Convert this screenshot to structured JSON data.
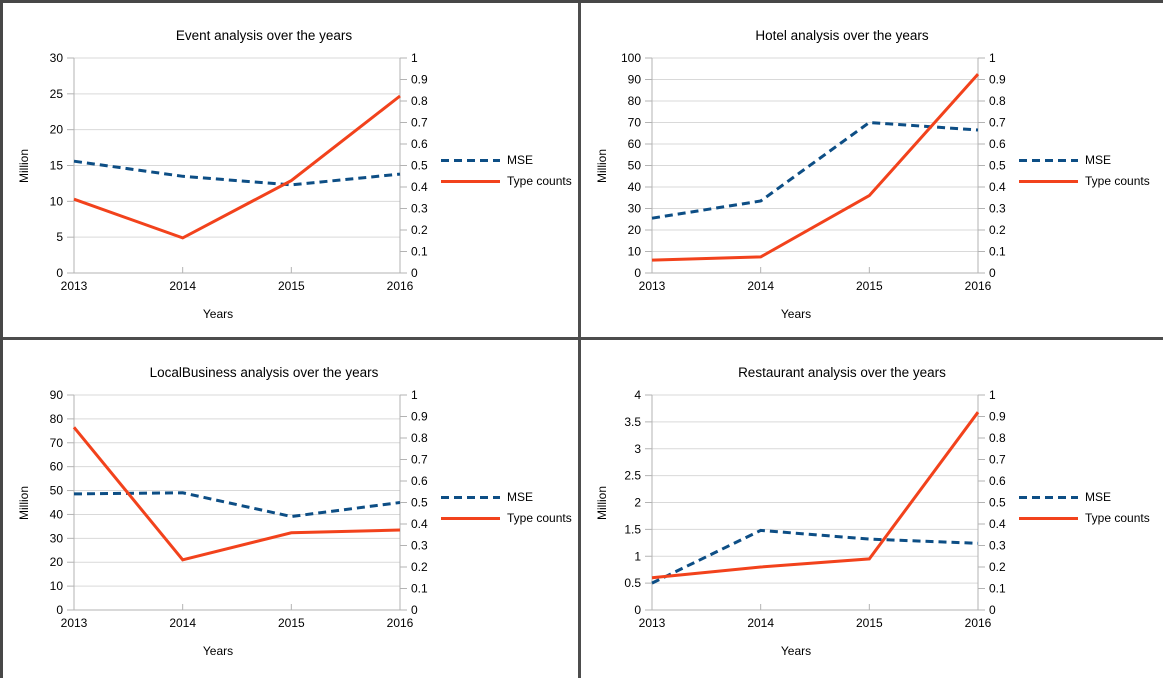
{
  "palette": {
    "mse_color": "#0d4e85",
    "type_counts_color": "#f2421c",
    "grid_color": "#d9d9d9",
    "axis_color": "#b3b3b3",
    "text_color": "#000000",
    "separator_color": "#4d4d4d",
    "background": "#ffffff"
  },
  "chart_data": [
    {
      "type": "line",
      "title": "Event analysis over the years",
      "xlabel": "Years",
      "ylabel": "Million",
      "categories": [
        "2013",
        "2014",
        "2015",
        "2016"
      ],
      "left_axis": {
        "min": 0,
        "max": 30,
        "step": 5,
        "unit": "Million",
        "ticks": [
          "30",
          "25",
          "20",
          "15",
          "10",
          "5",
          "0"
        ]
      },
      "right_axis": {
        "min": 0,
        "max": 1,
        "step": 0.1,
        "ticks": [
          "1",
          "0.9",
          "0.8",
          "0.7",
          "0.6",
          "0.5",
          "0.4",
          "0.3",
          "0.2",
          "0.1",
          "0"
        ]
      },
      "legend_position": "right",
      "grid": true,
      "series": [
        {
          "name": "MSE",
          "axis": "right",
          "style": "dashed",
          "color": "#0d4e85",
          "values": [
            0.52,
            0.45,
            0.41,
            0.46
          ]
        },
        {
          "name": "Type counts",
          "axis": "left",
          "style": "solid",
          "color": "#f2421c",
          "values": [
            10.3,
            4.9,
            12.9,
            24.7
          ]
        }
      ]
    },
    {
      "type": "line",
      "title": "Hotel analysis over the years",
      "xlabel": "Years",
      "ylabel": "Million",
      "categories": [
        "2013",
        "2014",
        "2015",
        "2016"
      ],
      "left_axis": {
        "min": 0,
        "max": 100,
        "step": 10,
        "unit": "Million",
        "ticks": [
          "100",
          "90",
          "80",
          "70",
          "60",
          "50",
          "40",
          "30",
          "20",
          "10",
          "0"
        ]
      },
      "right_axis": {
        "min": 0,
        "max": 1,
        "step": 0.1,
        "ticks": [
          "1",
          "0.9",
          "0.8",
          "0.7",
          "0.6",
          "0.5",
          "0.4",
          "0.3",
          "0.2",
          "0.1",
          "0"
        ]
      },
      "legend_position": "right",
      "grid": true,
      "series": [
        {
          "name": "MSE",
          "axis": "right",
          "style": "dashed",
          "color": "#0d4e85",
          "values": [
            0.255,
            0.335,
            0.7,
            0.665
          ]
        },
        {
          "name": "Type counts",
          "axis": "left",
          "style": "solid",
          "color": "#f2421c",
          "values": [
            6,
            7.5,
            36,
            92.5
          ]
        }
      ]
    },
    {
      "type": "line",
      "title": "LocalBusiness analysis over the years",
      "xlabel": "Years",
      "ylabel": "Million",
      "categories": [
        "2013",
        "2014",
        "2015",
        "2016"
      ],
      "left_axis": {
        "min": 0,
        "max": 90,
        "step": 10,
        "unit": "Million",
        "ticks": [
          "90",
          "80",
          "70",
          "60",
          "50",
          "40",
          "30",
          "20",
          "10",
          "0"
        ]
      },
      "right_axis": {
        "min": 0,
        "max": 1,
        "step": 0.1,
        "ticks": [
          "1",
          "0.9",
          "0.8",
          "0.7",
          "0.6",
          "0.5",
          "0.4",
          "0.3",
          "0.2",
          "0.1",
          "0"
        ]
      },
      "legend_position": "right",
      "grid": true,
      "series": [
        {
          "name": "MSE",
          "axis": "right",
          "style": "dashed",
          "color": "#0d4e85",
          "values": [
            0.54,
            0.545,
            0.435,
            0.5
          ]
        },
        {
          "name": "Type counts",
          "axis": "left",
          "style": "solid",
          "color": "#f2421c",
          "values": [
            76.5,
            21,
            32.3,
            33.5
          ]
        }
      ]
    },
    {
      "type": "line",
      "title": "Restaurant analysis over the years",
      "xlabel": "Years",
      "ylabel": "Million",
      "categories": [
        "2013",
        "2014",
        "2015",
        "2016"
      ],
      "left_axis": {
        "min": 0,
        "max": 4,
        "step": 0.5,
        "unit": "Million",
        "ticks": [
          "4",
          "3.5",
          "3",
          "2.5",
          "2",
          "1.5",
          "1",
          "0.5",
          "0"
        ]
      },
      "right_axis": {
        "min": 0,
        "max": 1,
        "step": 0.1,
        "ticks": [
          "1",
          "0.9",
          "0.8",
          "0.7",
          "0.6",
          "0.5",
          "0.4",
          "0.3",
          "0.2",
          "0.1",
          "0"
        ]
      },
      "legend_position": "right",
      "grid": true,
      "series": [
        {
          "name": "MSE",
          "axis": "right",
          "style": "dashed",
          "color": "#0d4e85",
          "values": [
            0.125,
            0.37,
            0.33,
            0.31
          ]
        },
        {
          "name": "Type counts",
          "axis": "left",
          "style": "solid",
          "color": "#f2421c",
          "values": [
            0.6,
            0.8,
            0.95,
            3.68
          ]
        }
      ]
    }
  ]
}
